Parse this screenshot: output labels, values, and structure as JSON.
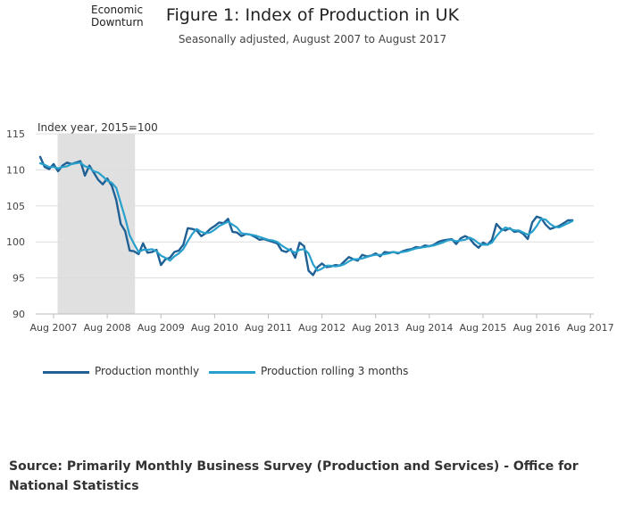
{
  "chart_data": {
    "type": "line",
    "title": "Figure 1: Index of Production in UK",
    "subtitle": "Seasonally adjusted, August 2007 to August 2017",
    "ylabel": "Index year, 2015=100",
    "ylim": [
      90,
      115
    ],
    "yticks": [
      90,
      95,
      100,
      105,
      110,
      115
    ],
    "xticks": [
      "Aug 2007",
      "Aug 2008",
      "Aug 2009",
      "Aug 2010",
      "Aug 2011",
      "Aug 2012",
      "Aug 2013",
      "Aug 2014",
      "Aug 2015",
      "Aug 2016",
      "Aug 2017"
    ],
    "shaded_region": {
      "label": "Economic Downturn",
      "start_month": 4,
      "end_month": 21
    },
    "grid": true,
    "legend_position": "bottom-left",
    "series": [
      {
        "name": "Production monthly",
        "color": "#206095",
        "values": [
          111.8,
          110.4,
          110.1,
          110.8,
          109.8,
          110.6,
          111.0,
          110.8,
          111.0,
          111.2,
          109.2,
          110.6,
          109.6,
          108.6,
          108.0,
          108.8,
          107.8,
          105.8,
          102.5,
          101.5,
          98.8,
          98.7,
          98.3,
          99.8,
          98.5,
          98.6,
          98.9,
          96.8,
          97.6,
          97.8,
          98.6,
          98.8,
          99.6,
          101.9,
          101.8,
          101.6,
          100.8,
          101.2,
          101.8,
          102.2,
          102.7,
          102.6,
          103.2,
          101.4,
          101.3,
          100.8,
          101.1,
          101.0,
          100.7,
          100.3,
          100.4,
          100.2,
          100.0,
          99.8,
          98.8,
          98.6,
          99.0,
          97.8,
          99.9,
          99.4,
          96.0,
          95.4,
          96.5,
          97.0,
          96.5,
          96.6,
          96.8,
          96.7,
          97.3,
          97.9,
          97.6,
          97.4,
          98.2,
          98.0,
          98.1,
          98.4,
          98.0,
          98.6,
          98.5,
          98.6,
          98.4,
          98.7,
          98.9,
          99.0,
          99.3,
          99.2,
          99.5,
          99.4,
          99.6,
          100.0,
          100.2,
          100.3,
          100.4,
          99.7,
          100.5,
          100.8,
          100.5,
          99.7,
          99.2,
          99.9,
          99.6,
          100.3,
          102.5,
          101.8,
          101.6,
          101.9,
          101.4,
          101.5,
          101.1,
          100.4,
          102.7,
          103.5,
          103.3,
          102.4,
          101.8,
          102.0,
          102.2,
          102.6,
          103.0,
          103.0
        ]
      },
      {
        "name": "Production rolling 3 months",
        "color": "#27a0cc",
        "values": [
          110.9,
          110.7,
          110.4,
          110.4,
          110.2,
          110.4,
          110.5,
          110.8,
          110.9,
          111.0,
          110.5,
          110.3,
          109.8,
          109.6,
          109.1,
          108.5,
          108.2,
          107.5,
          105.4,
          103.3,
          100.9,
          99.7,
          98.6,
          98.9,
          98.9,
          99.0,
          98.7,
          98.1,
          97.8,
          97.4,
          98.0,
          98.4,
          99.0,
          100.1,
          101.1,
          101.8,
          101.4,
          101.2,
          101.3,
          101.7,
          102.2,
          102.5,
          102.8,
          102.4,
          102.0,
          101.2,
          101.1,
          101.0,
          100.9,
          100.7,
          100.5,
          100.3,
          100.2,
          100.0,
          99.5,
          99.1,
          98.8,
          98.5,
          98.9,
          99.0,
          98.4,
          96.9,
          96.0,
          96.3,
          96.7,
          96.7,
          96.6,
          96.7,
          96.9,
          97.3,
          97.6,
          97.6,
          97.7,
          97.9,
          98.1,
          98.2,
          98.2,
          98.3,
          98.4,
          98.6,
          98.5,
          98.6,
          98.7,
          98.9,
          99.1,
          99.2,
          99.3,
          99.4,
          99.5,
          99.7,
          99.9,
          100.2,
          100.3,
          100.1,
          100.2,
          100.3,
          100.6,
          100.3,
          99.8,
          99.6,
          99.6,
          99.9,
          100.8,
          101.5,
          102.0,
          101.8,
          101.6,
          101.6,
          101.3,
          101.0,
          101.4,
          102.2,
          103.2,
          103.1,
          102.5,
          102.1,
          102.0,
          102.3,
          102.6,
          102.9
        ]
      }
    ]
  },
  "source_text": "Source: Primarily Monthly Business Survey (Production and Services) - Office for National Statistics"
}
